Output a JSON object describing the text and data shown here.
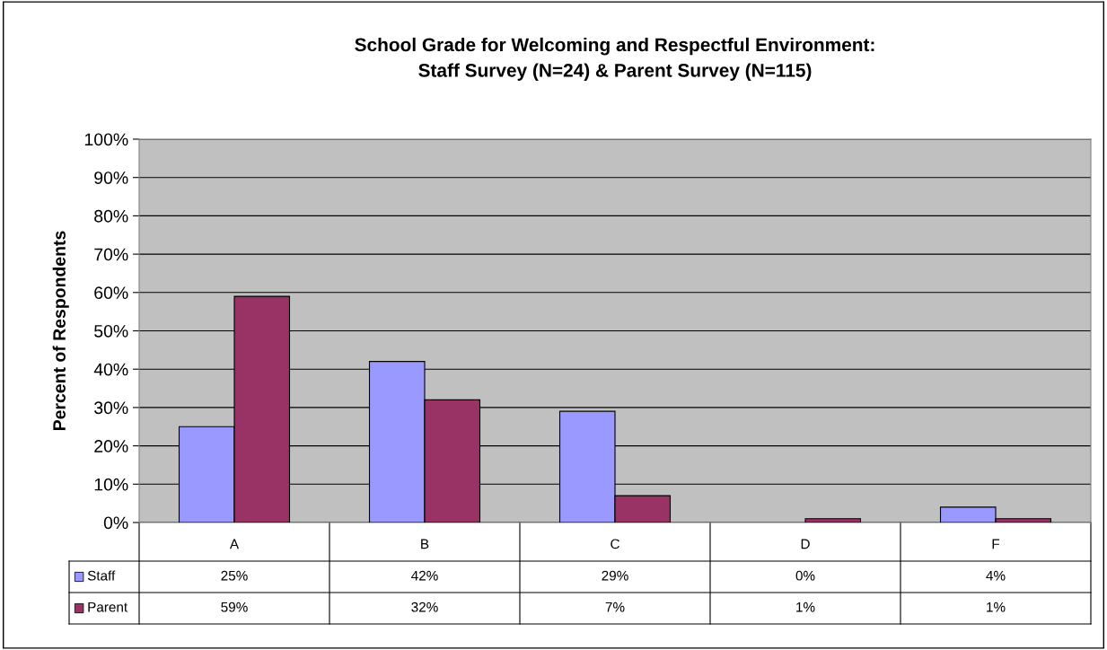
{
  "chart_data": {
    "type": "bar",
    "title": "School Grade for Welcoming and Respectful Environment:\nStaff Survey (N=24) & Parent Survey (N=115)",
    "ylabel": "Percent of Respondents",
    "categories": [
      "A",
      "B",
      "C",
      "D",
      "F"
    ],
    "series": [
      {
        "name": "Staff",
        "color": "#9999ff",
        "values": [
          25,
          42,
          29,
          0,
          4
        ],
        "value_labels": [
          "25%",
          "42%",
          "29%",
          "0%",
          "4%"
        ]
      },
      {
        "name": "Parent",
        "color": "#993366",
        "values": [
          59,
          32,
          7,
          1,
          1
        ],
        "value_labels": [
          "59%",
          "32%",
          "7%",
          "1%",
          "1%"
        ]
      }
    ],
    "ylim": [
      0,
      100
    ],
    "yticks": [
      {
        "value": 0,
        "label": "0%"
      },
      {
        "value": 10,
        "label": "10%"
      },
      {
        "value": 20,
        "label": "20%"
      },
      {
        "value": 30,
        "label": "30%"
      },
      {
        "value": 40,
        "label": "40%"
      },
      {
        "value": 50,
        "label": "50%"
      },
      {
        "value": 60,
        "label": "60%"
      },
      {
        "value": 70,
        "label": "70%"
      },
      {
        "value": 80,
        "label": "80%"
      },
      {
        "value": 90,
        "label": "90%"
      },
      {
        "value": 100,
        "label": "100%"
      }
    ],
    "grid": "y",
    "legend": "bottom"
  }
}
